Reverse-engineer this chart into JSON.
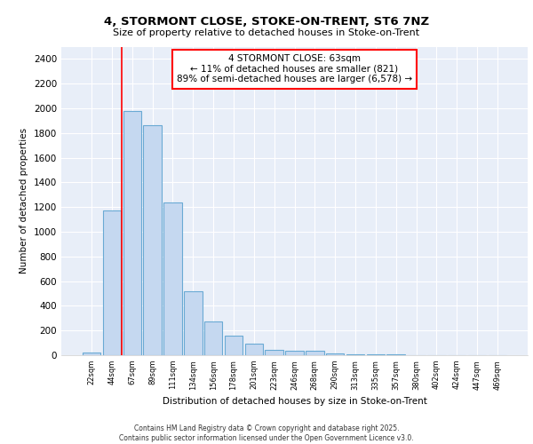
{
  "title1": "4, STORMONT CLOSE, STOKE-ON-TRENT, ST6 7NZ",
  "title2": "Size of property relative to detached houses in Stoke-on-Trent",
  "xlabel": "Distribution of detached houses by size in Stoke-on-Trent",
  "ylabel": "Number of detached properties",
  "categories": [
    "22sqm",
    "44sqm",
    "67sqm",
    "89sqm",
    "111sqm",
    "134sqm",
    "156sqm",
    "178sqm",
    "201sqm",
    "223sqm",
    "246sqm",
    "268sqm",
    "290sqm",
    "313sqm",
    "335sqm",
    "357sqm",
    "380sqm",
    "402sqm",
    "424sqm",
    "447sqm",
    "469sqm"
  ],
  "values": [
    25,
    1170,
    1980,
    1860,
    1240,
    520,
    275,
    155,
    90,
    45,
    38,
    35,
    15,
    8,
    5,
    4,
    3,
    2,
    2,
    1,
    1
  ],
  "bar_color": "#c5d8f0",
  "bar_edge_color": "#6aaad4",
  "red_line_x": 2.0,
  "annotation_title": "4 STORMONT CLOSE: 63sqm",
  "annotation_line1": "← 11% of detached houses are smaller (821)",
  "annotation_line2": "89% of semi-detached houses are larger (6,578) →",
  "ylim": [
    0,
    2500
  ],
  "yticks": [
    0,
    200,
    400,
    600,
    800,
    1000,
    1200,
    1400,
    1600,
    1800,
    2000,
    2200,
    2400
  ],
  "bg_color": "#e8eef8",
  "grid_color": "#ffffff",
  "footer1": "Contains HM Land Registry data © Crown copyright and database right 2025.",
  "footer2": "Contains public sector information licensed under the Open Government Licence v3.0."
}
